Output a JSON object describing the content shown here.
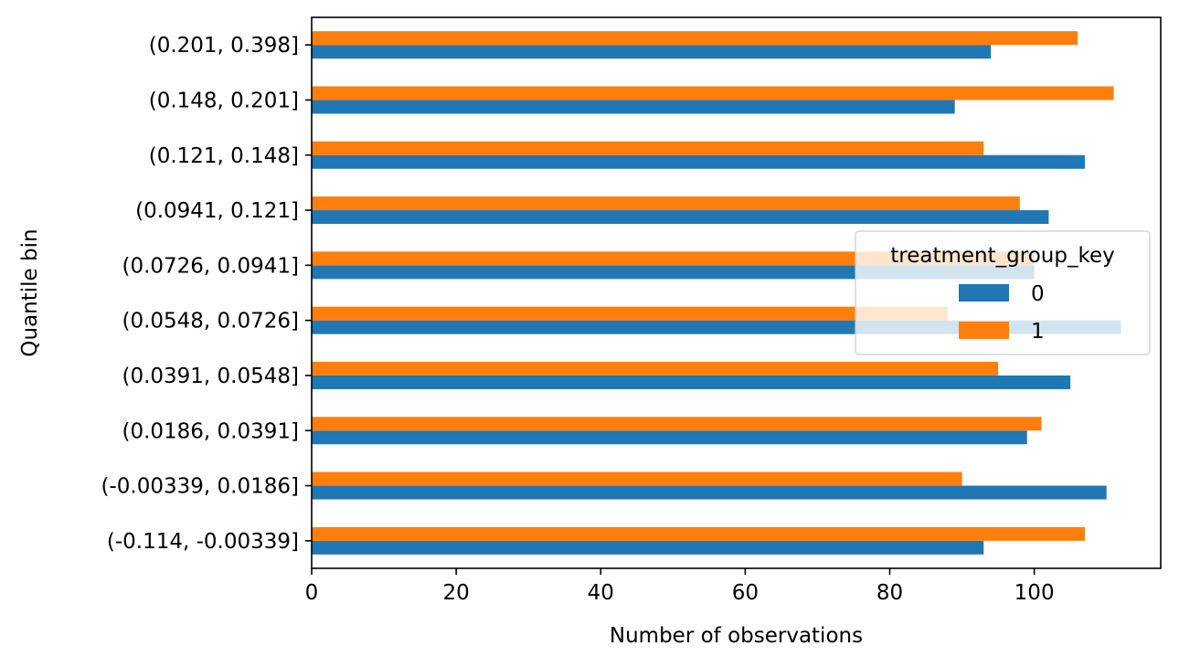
{
  "chart_data": {
    "type": "bar",
    "orientation": "horizontal",
    "xlabel": "Number of observations",
    "ylabel": "Quantile bin",
    "xlim": [
      0,
      117.5
    ],
    "xticks": [
      0,
      20,
      40,
      60,
      80,
      100
    ],
    "categories": [
      "(-0.114, -0.00339]",
      "(-0.00339, 0.0186]",
      "(0.0186, 0.0391]",
      "(0.0391, 0.0548]",
      "(0.0548, 0.0726]",
      "(0.0726, 0.0941]",
      "(0.0941, 0.121]",
      "(0.121, 0.148]",
      "(0.148, 0.201]",
      "(0.201, 0.398]"
    ],
    "series": [
      {
        "name": "0",
        "color": "#1f77b4",
        "values": [
          93,
          110,
          99,
          105,
          112,
          100,
          102,
          107,
          89,
          94
        ]
      },
      {
        "name": "1",
        "color": "#ff7f0e",
        "values": [
          107,
          90,
          101,
          95,
          88,
          100,
          98,
          93,
          111,
          106
        ]
      }
    ],
    "legend": {
      "title": "treatment_group_key",
      "placement": "center-right"
    },
    "grid": false
  }
}
